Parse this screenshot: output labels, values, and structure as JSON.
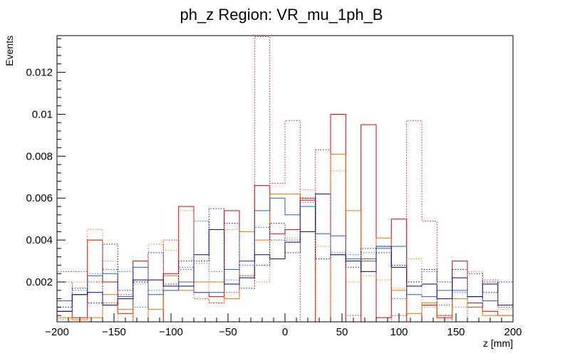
{
  "chart_data": {
    "type": "line",
    "style": "step-histogram",
    "title": "ph_z Region: VR_mu_1ph_B",
    "xlabel": "z [mm]",
    "ylabel": "Events",
    "xlim": [
      -200,
      200
    ],
    "ylim": [
      0.0001,
      0.01375
    ],
    "x_ticks": [
      -200,
      -150,
      -100,
      -50,
      0,
      50,
      100,
      150,
      200
    ],
    "x_tick_labels": [
      "−200",
      "−150",
      "−100",
      "−50",
      "0",
      "50",
      "100",
      "150",
      "200"
    ],
    "y_ticks": [
      0.002,
      0.004,
      0.006,
      0.008,
      0.01,
      0.012
    ],
    "y_tick_labels": [
      "0.002",
      "0.004",
      "0.006",
      "0.008",
      "0.01",
      "0.012"
    ],
    "bin_edges": [
      -200,
      -186.7,
      -173.3,
      -160,
      -146.7,
      -133.3,
      -120,
      -106.7,
      -93.3,
      -80,
      -66.7,
      -53.3,
      -40,
      -26.7,
      -13.3,
      0,
      13.3,
      26.7,
      40,
      53.3,
      66.7,
      80,
      93.3,
      106.7,
      120,
      133.3,
      146.7,
      160,
      173.3,
      186.7,
      200
    ],
    "series": [
      {
        "name": "red solid",
        "color": "#e00000",
        "dash": "solid",
        "values": [
          0.0006,
          0.0003,
          0.004,
          0.002,
          0.0005,
          0.003,
          0.0001,
          0.0024,
          0.0056,
          0.0015,
          0.0013,
          0.0054,
          0.003,
          0.0066,
          0.0043,
          0.0045,
          0.0059,
          0.0001,
          0.01,
          0.0001,
          0.0095,
          0.0003,
          0.005,
          0.0001,
          0.0009,
          0.0003,
          0.003,
          0.001,
          0.0006,
          0.0004
        ]
      },
      {
        "name": "orange solid",
        "color": "#f07000",
        "dash": "solid",
        "values": [
          0.0003,
          0.0002,
          0.0003,
          0.0014,
          0.0007,
          0.0001,
          0.0007,
          0.0023,
          0.0016,
          0.002,
          0.002,
          0.0012,
          0.0044,
          0.004,
          0.0062,
          0.0062,
          0.006,
          0.0001,
          0.0081,
          0.0054,
          0.003,
          0.0041,
          0.0016,
          0.0005,
          0.001,
          0.0004,
          0.0012,
          0.0008,
          0.0004,
          0.0004
        ]
      },
      {
        "name": "blue solid",
        "color": "#2060d0",
        "dash": "solid",
        "values": [
          0.0011,
          0.0014,
          0.0023,
          0.0024,
          0.0013,
          0.0027,
          0.0014,
          0.0016,
          0.002,
          0.0015,
          0.0015,
          0.0026,
          0.003,
          0.0054,
          0.006,
          0.0052,
          0.0056,
          0.0043,
          0.0042,
          0.0031,
          0.0031,
          0.0036,
          0.0037,
          0.0014,
          0.0013,
          0.0016,
          0.0016,
          0.0013,
          0.0011,
          0.0009
        ]
      },
      {
        "name": "navy solid",
        "color": "#000080",
        "dash": "solid",
        "values": [
          0.0006,
          0.0014,
          0.0015,
          0.0009,
          0.0012,
          0.0021,
          0.0021,
          0.0018,
          0.0018,
          0.0033,
          0.0045,
          0.0019,
          0.0022,
          0.0033,
          0.0031,
          0.0039,
          0.0044,
          0.0062,
          0.0033,
          0.003,
          0.0025,
          0.0037,
          0.0027,
          0.0018,
          0.0019,
          0.0012,
          0.0022,
          0.0013,
          0.0019,
          0.0009
        ]
      },
      {
        "name": "red dotted",
        "color": "#e00000",
        "dash": "dotted",
        "values": [
          0.0025,
          0.0025,
          0.002,
          0.001,
          0.0014,
          0.002,
          0.0021,
          0.004,
          0.0026,
          0.0012,
          0.001,
          0.0015,
          0.0023,
          0.0137,
          0.0067,
          0.0097,
          0.0001,
          0.0083,
          0.0001,
          0.0004,
          0.003,
          0.0001,
          0.0004,
          0.0097,
          0.0049,
          0.0004,
          0.0001,
          0.0008,
          0.0021,
          0.0008
        ]
      },
      {
        "name": "orange dotted",
        "color": "#f07000",
        "dash": "dotted",
        "values": [
          0.0002,
          0.002,
          0.0045,
          0.003,
          0.0001,
          0.0019,
          0.0038,
          0.0035,
          0.0054,
          0.0029,
          0.001,
          0.0045,
          0.0023,
          0.002,
          0.004,
          0.0041,
          0.0064,
          0.0037,
          0.0073,
          0.002,
          0.0023,
          0.0021,
          0.0017,
          0.0031,
          0.0008,
          0.0002,
          0.0008,
          0.0025,
          0.002,
          0.0007
        ]
      },
      {
        "name": "blue dotted",
        "color": "#2060d0",
        "dash": "dotted",
        "values": [
          0.002,
          0.0016,
          0.0024,
          0.0026,
          0.0025,
          0.0008,
          0.0016,
          0.0016,
          0.0027,
          0.0049,
          0.0025,
          0.0021,
          0.0028,
          0.0046,
          0.004,
          0.004,
          0.0058,
          0.0043,
          0.0034,
          0.0033,
          0.0034,
          0.0037,
          0.0012,
          0.002,
          0.0025,
          0.0009,
          0.0015,
          0.001,
          0.002,
          0.0009
        ]
      },
      {
        "name": "navy dotted",
        "color": "#000080",
        "dash": "dotted",
        "values": [
          0.0008,
          0.0017,
          0.001,
          0.0038,
          0.0016,
          0.002,
          0.0034,
          0.0019,
          0.003,
          0.003,
          0.0055,
          0.0048,
          0.0017,
          0.0028,
          0.0048,
          0.0034,
          0.006,
          0.0031,
          0.0033,
          0.0027,
          0.0036,
          0.0034,
          0.0028,
          0.002,
          0.0026,
          0.002,
          0.0026,
          0.0024,
          0.0015,
          0.002
        ]
      }
    ]
  }
}
